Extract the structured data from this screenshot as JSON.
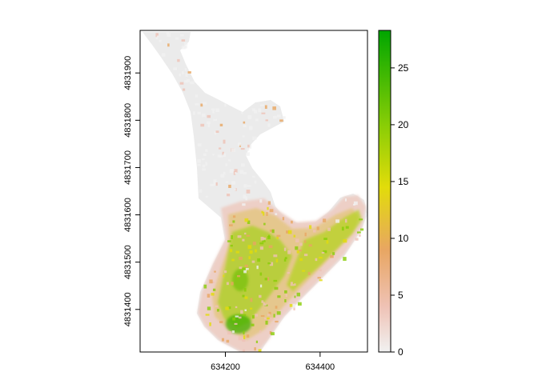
{
  "chart_data": {
    "type": "heatmap",
    "title": "",
    "xlabel": "",
    "ylabel": "",
    "xlim": [
      634020,
      634500
    ],
    "ylim": [
      4831310,
      4831990
    ],
    "x_ticks": [
      634200,
      634400
    ],
    "x_tick_labels": [
      "634200",
      "634400"
    ],
    "y_ticks": [
      4831400,
      4831500,
      4831600,
      4831700,
      4831800,
      4831900
    ],
    "y_tick_labels": [
      "4831400",
      "4831500",
      "4831600",
      "4831700",
      "4831800",
      "4831900"
    ],
    "value_range": [
      0,
      28.3
    ],
    "colorbar": {
      "ticks": [
        0,
        5,
        10,
        15,
        20,
        25
      ],
      "tick_labels": [
        "0",
        "5",
        "10",
        "15",
        "20",
        "25"
      ],
      "stops": [
        {
          "value": 0,
          "color": "#f1f1f1"
        },
        {
          "value": 4,
          "color": "#efc2b5"
        },
        {
          "value": 9,
          "color": "#e8a662"
        },
        {
          "value": 14.5,
          "color": "#e2dc0a"
        },
        {
          "value": 20,
          "color": "#88cd06"
        },
        {
          "value": 28.3,
          "color": "#00a600"
        }
      ]
    },
    "raster_summary": "raster of values 0–28; low values across northern peninsula, higher values (green, ~15–28) concentrated in the southern lobe"
  }
}
